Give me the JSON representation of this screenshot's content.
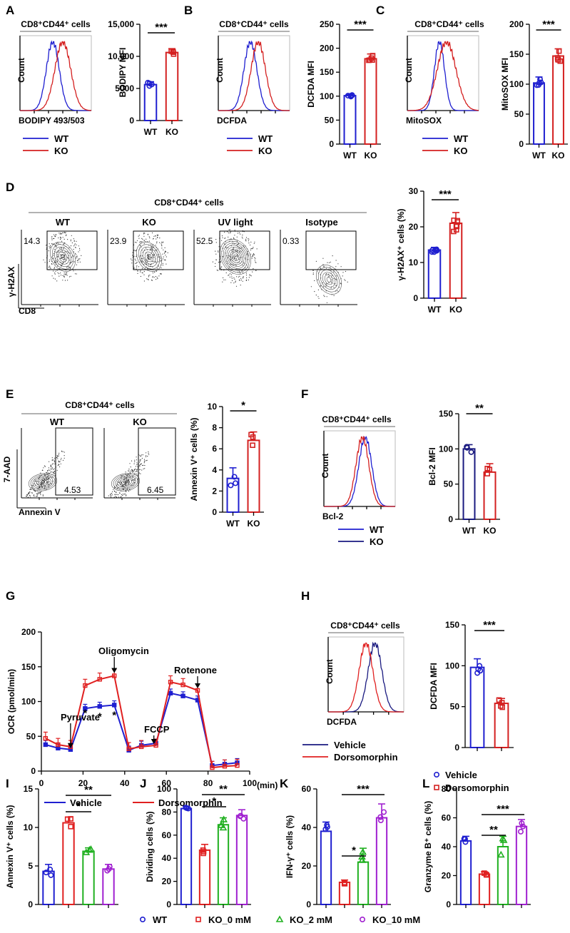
{
  "colors": {
    "wt": "#1f1fd0",
    "ko": "#d42020",
    "vehicle": "#1f1fd0",
    "dorso": "#e02020",
    "ko0": "#e02020",
    "ko2": "#20b020",
    "ko10": "#a020d0",
    "navy": "#1a1a80"
  },
  "common": {
    "cell_title": "CD8⁺CD44⁺ cells",
    "wt": "WT",
    "ko": "KO",
    "count": "Count"
  },
  "chart_data": [
    {
      "id": "A",
      "type": "histogram",
      "xlabel": "BODIPY 493/503",
      "ylabel": "Count",
      "legend": [
        "WT",
        "KO"
      ]
    },
    {
      "id": "A_bar",
      "type": "bar",
      "categories": [
        "WT",
        "KO"
      ],
      "values": [
        5600,
        10600
      ],
      "ylim": [
        0,
        15000
      ],
      "yticks": [
        "0",
        "5000",
        "10,000",
        "15,000"
      ],
      "ylabel": "BODIPY MFI",
      "sig": "***"
    },
    {
      "id": "B",
      "type": "histogram",
      "xlabel": "DCFDA",
      "ylabel": "Count",
      "legend": [
        "WT",
        "KO"
      ]
    },
    {
      "id": "B_bar",
      "type": "bar",
      "categories": [
        "WT",
        "KO"
      ],
      "values": [
        101,
        178
      ],
      "ylim": [
        0,
        250
      ],
      "yticks": [
        "0",
        "50",
        "100",
        "150",
        "200",
        "250"
      ],
      "ylabel": "DCFDA MFI",
      "sig": "***"
    },
    {
      "id": "C",
      "type": "histogram",
      "xlabel": "MitoSOX",
      "ylabel": "Count",
      "legend": [
        "WT",
        "KO"
      ]
    },
    {
      "id": "C_bar",
      "type": "bar",
      "categories": [
        "WT",
        "KO"
      ],
      "values": [
        102,
        147
      ],
      "ylim": [
        0,
        200
      ],
      "yticks": [
        "0",
        "50",
        "100",
        "150",
        "200"
      ],
      "ylabel": "MitoSOX MFI",
      "sig": "***"
    },
    {
      "id": "D",
      "type": "flow_contour",
      "panels": [
        "WT",
        "KO",
        "UV light",
        "Isotype"
      ],
      "gates": [
        "14.3",
        "23.9",
        "52.5",
        "0.33"
      ],
      "xlabel": "CD8",
      "ylabel": "γ-H2AX"
    },
    {
      "id": "D_bar",
      "type": "bar",
      "categories": [
        "WT",
        "KO"
      ],
      "values": [
        13.5,
        21
      ],
      "ylim": [
        0,
        30
      ],
      "yticks": [
        "0",
        "10",
        "20",
        "30"
      ],
      "ylabel": "γ-H2AX⁺ cells (%)",
      "sig": "***"
    },
    {
      "id": "E",
      "type": "flow_contour",
      "panels": [
        "WT",
        "KO"
      ],
      "gates": [
        "4.53",
        "6.45"
      ],
      "xlabel": "Annexin V",
      "ylabel": "7-AAD"
    },
    {
      "id": "E_bar",
      "type": "bar",
      "categories": [
        "WT",
        "KO"
      ],
      "values": [
        3.2,
        6.8
      ],
      "ylim": [
        0,
        10
      ],
      "yticks": [
        "0",
        "2",
        "4",
        "6",
        "8",
        "10"
      ],
      "ylabel": "Annexin V⁺ cells (%)",
      "sig": "*"
    },
    {
      "id": "F",
      "type": "histogram",
      "xlabel": "Bcl-2",
      "ylabel": "Count",
      "legend": [
        "WT",
        "KO"
      ]
    },
    {
      "id": "F_bar",
      "type": "bar",
      "categories": [
        "WT",
        "KO"
      ],
      "values": [
        100,
        67
      ],
      "ylim": [
        0,
        150
      ],
      "yticks": [
        "0",
        "50",
        "100",
        "150"
      ],
      "ylabel": "Bcl-2 MFI",
      "sig": "**"
    },
    {
      "id": "G",
      "type": "line",
      "title": "",
      "xlabel": "(min)",
      "ylabel": "OCR (pmol/min)",
      "xlim": [
        0,
        100
      ],
      "ylim": [
        0,
        200
      ],
      "xticks": [
        "0",
        "20",
        "40",
        "60",
        "80",
        "100"
      ],
      "yticks": [
        "0",
        "50",
        "100",
        "150",
        "200"
      ],
      "x": [
        2,
        8,
        14,
        21,
        28,
        35,
        42,
        48,
        55,
        62,
        68,
        75,
        82,
        88,
        94
      ],
      "series": [
        {
          "name": "Vehicle",
          "values": [
            38,
            33,
            31,
            90,
            93,
            95,
            30,
            37,
            40,
            112,
            108,
            102,
            8,
            10,
            12
          ]
        },
        {
          "name": "Dorsomorphin",
          "values": [
            47,
            38,
            35,
            123,
            132,
            137,
            32,
            35,
            37,
            128,
            124,
            116,
            5,
            7,
            8
          ]
        }
      ],
      "annotations": [
        "Pyruvate",
        "Oligomycin",
        "FCCP",
        "Rotenone"
      ],
      "stars": [
        "*",
        "*",
        "*"
      ]
    },
    {
      "id": "H",
      "type": "histogram",
      "xlabel": "DCFDA",
      "ylabel": "Count",
      "legend": [
        "Vehicle",
        "Dorsomorphin"
      ]
    },
    {
      "id": "H_bar",
      "type": "bar",
      "categories": [
        "Vehicle",
        "Dorsomorphin"
      ],
      "values": [
        98,
        54
      ],
      "ylim": [
        0,
        150
      ],
      "yticks": [
        "0",
        "50",
        "100",
        "150"
      ],
      "ylabel": "DCFDA MFI",
      "sig": "***"
    },
    {
      "id": "I",
      "type": "bar",
      "categories": [
        "WT",
        "KO_0 mM",
        "KO_2 mM",
        "KO_10 mM"
      ],
      "values": [
        4.3,
        10.6,
        6.9,
        4.6
      ],
      "ylim": [
        0,
        15
      ],
      "yticks": [
        "0",
        "5",
        "10",
        "15"
      ],
      "ylabel": "Annexin V⁺ cells  (%)",
      "sig": [
        "*",
        "**"
      ]
    },
    {
      "id": "J",
      "type": "bar",
      "categories": [
        "WT",
        "KO_0 mM",
        "KO_2 mM",
        "KO_10 mM"
      ],
      "values": [
        83,
        47,
        69,
        77
      ],
      "ylim": [
        0,
        100
      ],
      "yticks": [
        "0",
        "20",
        "40",
        "60",
        "80",
        "100"
      ],
      "ylabel": "Dividing cells (%)",
      "sig": [
        "*",
        "**"
      ]
    },
    {
      "id": "K",
      "type": "bar",
      "categories": [
        "WT",
        "KO_0 mM",
        "KO_2 mM",
        "KO_10 mM"
      ],
      "values": [
        38,
        11.5,
        22,
        45
      ],
      "ylim": [
        0,
        60
      ],
      "yticks": [
        "0",
        "20",
        "40",
        "60"
      ],
      "ylabel": "IFN-γ⁺ cells (%)",
      "sig": [
        "*",
        "***"
      ]
    },
    {
      "id": "L",
      "type": "bar",
      "categories": [
        "WT",
        "KO_0 mM",
        "KO_2 mM",
        "KO_10 mM"
      ],
      "values": [
        44,
        21,
        40,
        54
      ],
      "ylim": [
        0,
        80
      ],
      "yticks": [
        "0",
        "20",
        "40",
        "60",
        "80"
      ],
      "ylabel": "Granzyme B⁺ cells (%)",
      "sig": [
        "**",
        "***"
      ]
    }
  ],
  "legend_bottom": [
    "WT",
    "KO_0 mM",
    "KO_2 mM",
    "KO_10 mM"
  ],
  "panel_labels": [
    "A",
    "B",
    "C",
    "D",
    "E",
    "F",
    "G",
    "H",
    "I",
    "J",
    "K",
    "L"
  ]
}
